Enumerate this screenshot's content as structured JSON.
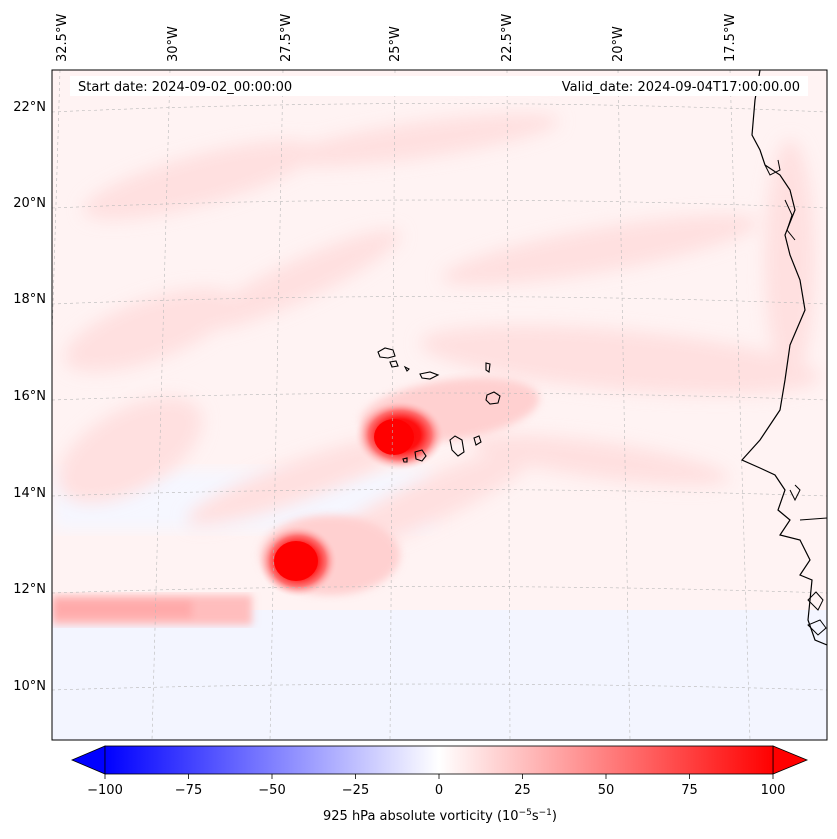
{
  "header": {
    "start_date": "Start date: 2024-09-02_00:00:00",
    "valid_date": "Valid_date: 2024-09-04T17:00:00.00"
  },
  "map": {
    "lon_labels": [
      "32.5°W",
      "30°W",
      "27.5°W",
      "25°W",
      "22.5°W",
      "20°W",
      "17.5°W"
    ],
    "lat_labels": [
      "22°N",
      "20°N",
      "18°N",
      "16°N",
      "14°N",
      "12°N",
      "10°N"
    ],
    "field": "925 hPa absolute vorticity",
    "features": [
      {
        "name": "vorticity-max-cape-verde",
        "lon": -25.0,
        "lat": 15.1,
        "value": 100
      },
      {
        "name": "vorticity-max-south",
        "lon": -27.3,
        "lat": 12.5,
        "value": 100
      }
    ]
  },
  "colorbar": {
    "ticks": [
      "−100",
      "−75",
      "−50",
      "−25",
      "0",
      "25",
      "50",
      "75",
      "100"
    ],
    "label_main": "925 hPa absolute vorticity (10",
    "label_exp1": "−5",
    "label_mid": "s",
    "label_exp2": "−1",
    "label_end": ")",
    "range": [
      -100,
      100
    ],
    "colors": {
      "neg": "#0000ff",
      "zero": "#ffffff",
      "pos": "#ff0000"
    }
  }
}
